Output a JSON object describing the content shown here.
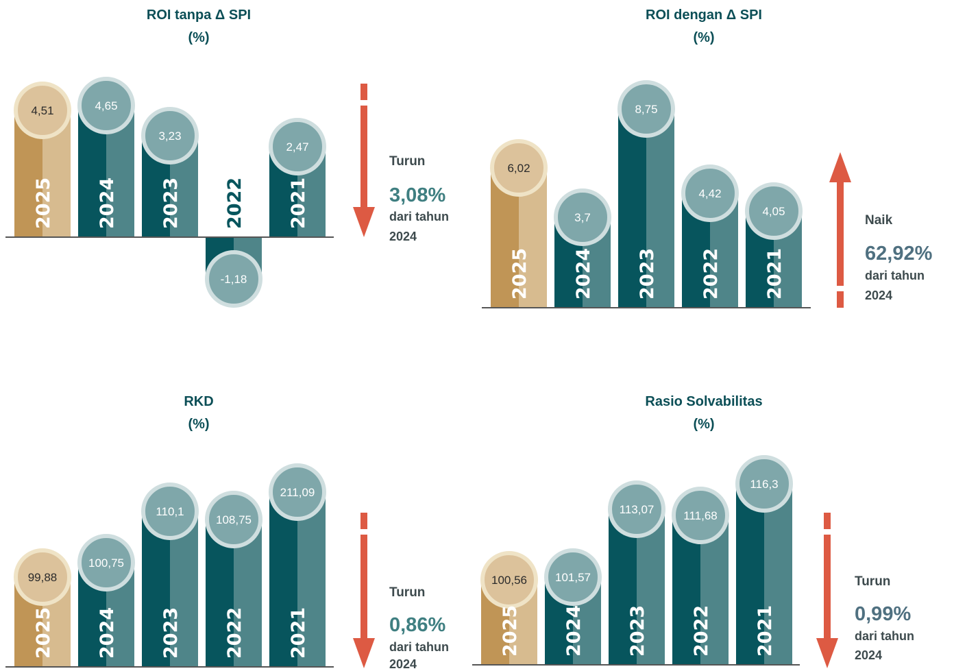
{
  "colors": {
    "teal_dark": "#07555d",
    "teal_light": "#4f8589",
    "teal_bubble": "#7fa7aa",
    "teal_bubble_ring": "#cfdedf",
    "gold_dark": "#c09556",
    "gold_light": "#d7bb8f",
    "gold_bubble": "#dcc29b",
    "gold_bubble_ring": "#efe3c6",
    "arrow": "#dd5a43",
    "title": "#0b4e56",
    "pct_teal": "#3f7f81",
    "pct_slate": "#4f7080",
    "baseline": "#555555"
  },
  "chart_data": [
    {
      "type": "bar",
      "title": "ROI tanpa Δ SPI",
      "unit": "(%)",
      "categories": [
        "2025",
        "2024",
        "2023",
        "2022",
        "2021"
      ],
      "values": [
        4.51,
        4.65,
        3.23,
        -1.18,
        2.47
      ],
      "labels": [
        "4,51",
        "4,65",
        "3,23",
        "-1,18",
        "2,47"
      ],
      "highlight": "2025",
      "change": {
        "direction": "Turun",
        "value": "3,08%",
        "note": "dari tahun",
        "year": "2024",
        "arrow": "down"
      }
    },
    {
      "type": "bar",
      "title": "ROI dengan Δ SPI",
      "unit": "(%)",
      "categories": [
        "2025",
        "2024",
        "2023",
        "2022",
        "2021"
      ],
      "values": [
        6.02,
        3.7,
        8.75,
        4.42,
        4.05
      ],
      "labels": [
        "6,02",
        "3,7",
        "8,75",
        "4,42",
        "4,05"
      ],
      "highlight": "2025",
      "change": {
        "direction": "Naik",
        "value": "62,92%",
        "note": "dari tahun",
        "year": "2024",
        "arrow": "up"
      }
    },
    {
      "type": "bar",
      "title": "RKD",
      "unit": "(%)",
      "categories": [
        "2025",
        "2024",
        "2023",
        "2022",
        "2021"
      ],
      "values": [
        99.88,
        100.75,
        110.1,
        108.75,
        211.09
      ],
      "labels": [
        "99,88",
        "100,75",
        "110,1",
        "108,75",
        "211,09"
      ],
      "highlight": "2025",
      "change": {
        "direction": "Turun",
        "value": "0,86%",
        "note": "dari tahun",
        "year": "2024",
        "arrow": "down"
      }
    },
    {
      "type": "bar",
      "title": "Rasio Solvabilitas",
      "unit": "(%)",
      "categories": [
        "2025",
        "2024",
        "2023",
        "2022",
        "2021"
      ],
      "values": [
        100.56,
        101.57,
        113.07,
        111.68,
        116.3
      ],
      "labels": [
        "100,56",
        "101,57",
        "113,07",
        "111,68",
        "116,3"
      ],
      "highlight": "2025",
      "change": {
        "direction": "Turun",
        "value": "0,99%",
        "note": "dari tahun",
        "year": "2024",
        "arrow": "down"
      }
    }
  ]
}
